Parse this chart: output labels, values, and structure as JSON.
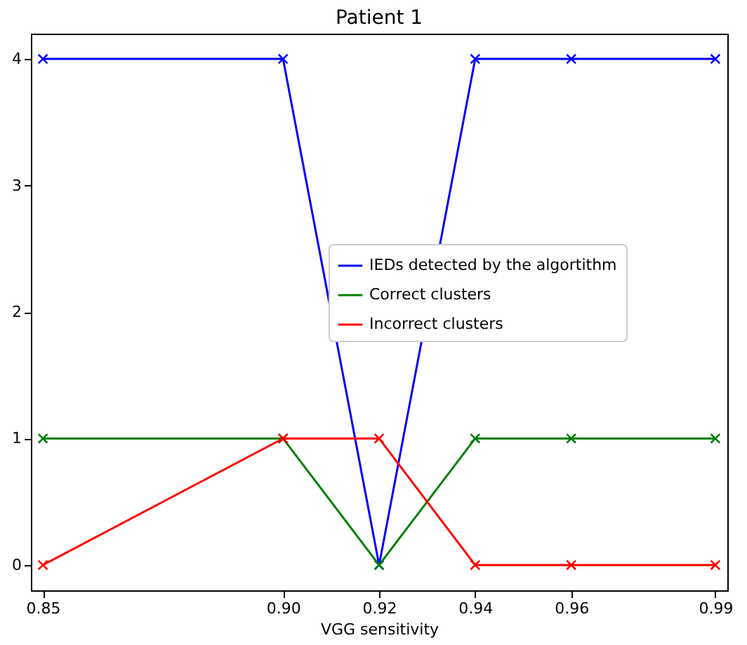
{
  "chart_data": {
    "type": "line",
    "title": "Patient 1",
    "xlabel": "VGG sensitivity",
    "x": [
      0.85,
      0.9,
      0.92,
      0.94,
      0.96,
      0.99
    ],
    "xlim": [
      0.8475,
      0.9925
    ],
    "xticks": [
      0.85,
      {
        "value": 0.9,
        "label": "0.90"
      },
      0.92,
      0.94,
      0.96,
      0.99
    ],
    "ylim": [
      -0.2,
      4.2
    ],
    "yticks": [
      0,
      1,
      2,
      3,
      4
    ],
    "marker": "cross",
    "line_style": "solid",
    "grid": false,
    "legend": "right",
    "series": [
      {
        "name": "IEDs detected by the algortithm",
        "color": "#0000ff",
        "values": [
          4,
          4,
          0,
          4,
          4,
          4
        ]
      },
      {
        "name": "Correct clusters",
        "color": "#008000",
        "values": [
          1,
          1,
          0,
          1,
          1,
          1
        ]
      },
      {
        "name": "Incorrect clusters",
        "color": "#ff0000",
        "values": [
          0,
          1,
          1,
          0,
          0,
          0
        ]
      }
    ]
  }
}
